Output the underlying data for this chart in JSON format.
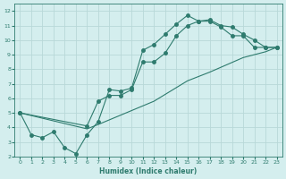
{
  "title": "",
  "xlabel": "Humidex (Indice chaleur)",
  "bg_color": "#d4eeee",
  "grid_color": "#b8d8d8",
  "line_color": "#2e7b6e",
  "xlim": [
    -0.5,
    23.5
  ],
  "ylim": [
    2,
    12.5
  ],
  "xticks": [
    0,
    1,
    2,
    3,
    4,
    5,
    6,
    7,
    8,
    9,
    10,
    11,
    12,
    13,
    14,
    15,
    16,
    17,
    18,
    19,
    20,
    21,
    22,
    23
  ],
  "yticks": [
    2,
    3,
    4,
    5,
    6,
    7,
    8,
    9,
    10,
    11,
    12
  ],
  "line1_x": [
    0,
    1,
    2,
    3,
    4,
    5,
    6,
    7,
    8,
    9,
    10,
    11,
    12,
    13,
    14,
    15,
    16,
    17,
    18,
    19,
    20,
    21,
    22,
    23
  ],
  "line1_y": [
    5,
    3.5,
    3.3,
    3.7,
    2.6,
    2.2,
    3.5,
    4.4,
    6.6,
    6.5,
    6.7,
    9.3,
    9.7,
    10.4,
    11.1,
    11.7,
    11.3,
    11.4,
    11.0,
    10.9,
    10.4,
    10.0,
    9.5,
    9.5
  ],
  "line2_x": [
    0,
    6,
    7,
    8,
    9,
    10,
    11,
    12,
    13,
    14,
    15,
    16,
    17,
    18,
    19,
    20,
    21,
    22,
    23
  ],
  "line2_y": [
    5,
    4.1,
    5.8,
    6.2,
    6.2,
    6.6,
    8.5,
    8.5,
    9.1,
    10.3,
    11.0,
    11.3,
    11.3,
    10.9,
    10.3,
    10.3,
    9.5,
    9.5,
    9.5
  ],
  "line3_x": [
    0,
    6,
    7,
    12,
    15,
    17,
    20,
    22,
    23
  ],
  "line3_y": [
    5,
    3.9,
    4.2,
    5.8,
    7.2,
    7.8,
    8.8,
    9.2,
    9.5
  ]
}
